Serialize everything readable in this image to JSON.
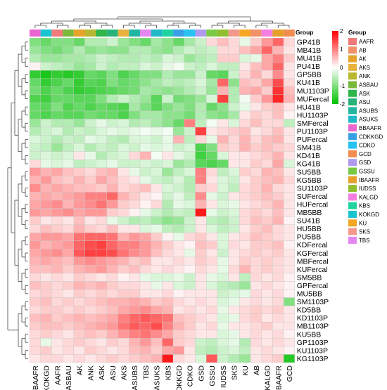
{
  "chart_data": {
    "type": "heatmap",
    "rows": [
      "GP41B",
      "MB41B",
      "MU41B",
      "PU41B",
      "GP5BB",
      "KU41B",
      "MU1103P",
      "MUFercal",
      "HU41B",
      "HU1103P",
      "SMFercal",
      "PU1103P",
      "PUFercal",
      "SM41B",
      "KD41B",
      "KG41B",
      "SU5BB",
      "KG5BB",
      "SU1103P",
      "SUFercal",
      "HUFercal",
      "MB5BB",
      "SU41B",
      "HU5BB",
      "PU5BB",
      "KDFercal",
      "KGFercal",
      "MBFercal",
      "KUFercal",
      "SM5BB",
      "GPFercal",
      "MU5BB",
      "SM1103P",
      "KD5BB",
      "KD1103P",
      "MB1103P",
      "KU5BB",
      "GP1103P",
      "KU1103P",
      "KG1103P"
    ],
    "columns": [
      "BBAAFR",
      "KOKGD",
      "AAFR",
      "ASBAU",
      "AK",
      "ANK",
      "ASK",
      "ASU",
      "AKS",
      "ASUBS",
      "TBS",
      "ASUKS",
      "KBS",
      "CDKKGD",
      "CDKO",
      "GSD",
      "GSSU",
      "IUDSS",
      "SKS",
      "KU",
      "AB",
      "KALGD",
      "IBAAFR",
      "GCD"
    ],
    "column_groups": [
      "BBAAFR",
      "KOKGD",
      "AAFR",
      "ASBAU",
      "AK",
      "ANK",
      "ASK",
      "ASU",
      "AKS",
      "ASUBS",
      "TBS",
      "ASUKS",
      "KBS",
      "CDKKGD",
      "CDKO",
      "GSD",
      "GSSU",
      "IUDSS",
      "SKS",
      "KU",
      "AB",
      "KALGD",
      "IBAAFR",
      "GCD"
    ],
    "colorbar": {
      "ticks": [
        2,
        1,
        0,
        -1,
        -2
      ],
      "colors": [
        "#ff0000",
        "#ffffff",
        "#00c000"
      ]
    },
    "group_legend": {
      "title": "Group",
      "items": [
        {
          "name": "AAFR",
          "color": "#f27a7a"
        },
        {
          "name": "AB",
          "color": "#f2906a"
        },
        {
          "name": "AK",
          "color": "#e6a52a"
        },
        {
          "name": "AKS",
          "color": "#e8b23c"
        },
        {
          "name": "ANK",
          "color": "#b7b82f"
        },
        {
          "name": "ASBAU",
          "color": "#7ab83a"
        },
        {
          "name": "ASK",
          "color": "#2fb54a"
        },
        {
          "name": "ASU",
          "color": "#27b37a"
        },
        {
          "name": "ASUBS",
          "color": "#22b5a0"
        },
        {
          "name": "ASUKS",
          "color": "#20b8c7"
        },
        {
          "name": "BBAAFR",
          "color": "#e865d2"
        },
        {
          "name": "CDKKGD",
          "color": "#3aa0e6"
        },
        {
          "name": "CDKO",
          "color": "#27c3f0"
        },
        {
          "name": "GCD",
          "color": "#f28c50"
        },
        {
          "name": "GSD",
          "color": "#b09aef"
        },
        {
          "name": "GSSU",
          "color": "#7ac943"
        },
        {
          "name": "IBAAFR",
          "color": "#e6a02a"
        },
        {
          "name": "IUDSS",
          "color": "#8fbf2f"
        },
        {
          "name": "KALGD",
          "color": "#f47fe0"
        },
        {
          "name": "KBS",
          "color": "#1fd3a0"
        },
        {
          "name": "KOKGD",
          "color": "#19c3cf"
        },
        {
          "name": "KU",
          "color": "#f5a623"
        },
        {
          "name": "SKS",
          "color": "#f2988a"
        },
        {
          "name": "TBS",
          "color": "#e487f0"
        }
      ]
    },
    "values": [
      [
        -1.0,
        -1.2,
        -1.0,
        -1.0,
        -1.2,
        -0.6,
        -0.6,
        -0.4,
        -0.8,
        -1.0,
        -1.2,
        -0.7,
        -0.9,
        -1.2,
        -0.7,
        -0.4,
        0.3,
        0.5,
        0.3,
        -0.2,
        0.4,
        0.8,
        1.2,
        0.3
      ],
      [
        -0.8,
        -1.0,
        -1.1,
        -0.9,
        -0.6,
        -0.9,
        -0.8,
        -0.9,
        -0.9,
        -0.6,
        -0.6,
        -0.8,
        -0.9,
        -0.6,
        -0.4,
        -0.5,
        -0.4,
        0.3,
        0.3,
        0.5,
        0.7,
        1.2,
        0.6,
        0.2
      ],
      [
        -0.6,
        -0.8,
        -0.8,
        -0.7,
        -0.7,
        -0.6,
        -0.4,
        -0.5,
        -0.6,
        -0.6,
        -0.5,
        -0.6,
        -0.3,
        -0.4,
        -0.8,
        -0.6,
        -0.5,
        0.4,
        0.4,
        -0.3,
        -0.2,
        0.7,
        1.0,
        0.4
      ],
      [
        0.1,
        -0.4,
        -0.5,
        -0.6,
        -0.8,
        -0.7,
        -0.4,
        -0.6,
        -0.5,
        -0.5,
        -0.3,
        -0.4,
        -0.2,
        -0.1,
        -0.4,
        -0.5,
        -0.3,
        -0.5,
        -0.5,
        0.2,
        0.5,
        0.7,
        1.2,
        0.2
      ],
      [
        -1.6,
        -1.8,
        -1.6,
        -1.7,
        -1.6,
        -1.2,
        -1.3,
        -1.0,
        -1.4,
        -1.2,
        -1.0,
        -1.0,
        -0.6,
        -0.8,
        -0.8,
        -0.4,
        -1.2,
        -1.3,
        -0.4,
        0.3,
        0.6,
        0.3,
        0.9,
        0.2
      ],
      [
        -1.2,
        -1.6,
        -1.4,
        -1.2,
        -1.6,
        -1.3,
        -1.4,
        -1.0,
        -1.2,
        -1.1,
        -0.9,
        -0.7,
        -0.5,
        -0.6,
        -0.5,
        -0.3,
        -0.7,
        1.2,
        -0.9,
        0.5,
        0.4,
        0.7,
        1.4,
        0.3
      ],
      [
        -1.1,
        -1.4,
        -1.2,
        -1.4,
        -1.6,
        -1.5,
        -1.4,
        -1.3,
        -1.2,
        -1.1,
        -0.7,
        -0.8,
        -0.9,
        -0.8,
        -0.6,
        -0.4,
        -0.8,
        0.6,
        -0.6,
        0.6,
        0.7,
        0.4,
        1.6,
        0.5
      ],
      [
        -1.4,
        -1.5,
        -1.2,
        -1.2,
        -1.3,
        -1.3,
        -1.0,
        -0.6,
        -0.4,
        -0.6,
        -0.8,
        -1.3,
        -0.4,
        -1.1,
        -1.0,
        -0.8,
        -0.3,
        1.5,
        -0.6,
        -0.1,
        0.4,
        0.8,
        1.7,
        0.6
      ],
      [
        -1.2,
        -1.3,
        -1.0,
        -1.4,
        -1.2,
        -1.4,
        -1.2,
        -1.3,
        -1.4,
        -0.7,
        -1.0,
        -1.3,
        -1.0,
        -0.8,
        -1.0,
        -0.6,
        -1.2,
        -0.9,
        -0.4,
        -0.2,
        0.2,
        0.4,
        0.5,
        0.2
      ],
      [
        -1.2,
        -1.4,
        -1.2,
        -1.3,
        -1.3,
        -1.1,
        -1.2,
        -1.2,
        -1.4,
        -1.0,
        -0.7,
        -0.7,
        -0.9,
        -0.9,
        -1.1,
        -0.6,
        -0.9,
        -1.0,
        -0.7,
        0.2,
        0.4,
        0.3,
        0.5,
        0.1
      ],
      [
        -0.8,
        -0.4,
        -0.6,
        -0.6,
        -0.8,
        -0.4,
        -0.2,
        -0.4,
        -0.3,
        -0.6,
        -0.5,
        -0.7,
        -0.9,
        -1.2,
        1.0,
        -0.5,
        -0.1,
        0.2,
        -0.3,
        0.3,
        0.5,
        0.3,
        0.3,
        -0.5
      ],
      [
        -0.6,
        -0.4,
        -0.3,
        -0.6,
        -0.4,
        -0.5,
        -0.3,
        -0.2,
        -0.3,
        -0.2,
        -0.1,
        -0.2,
        -0.1,
        -0.8,
        -0.4,
        1.5,
        0.2,
        0.3,
        0.4,
        0.5,
        0.2,
        0.3,
        0.5,
        0.2
      ],
      [
        -0.3,
        -0.4,
        -0.6,
        -0.4,
        -0.5,
        -0.2,
        -0.3,
        -0.5,
        -0.6,
        -0.3,
        -0.3,
        -0.4,
        -0.2,
        0.6,
        -0.5,
        0.3,
        -0.2,
        0.6,
        0.3,
        0.6,
        0.3,
        0.5,
        0.6,
        0.2
      ],
      [
        -0.4,
        -0.5,
        -0.8,
        -0.5,
        -0.3,
        -0.6,
        -0.4,
        -0.5,
        -0.3,
        -0.4,
        -0.2,
        -0.3,
        -0.2,
        -0.4,
        -0.3,
        -1.4,
        -1.0,
        0.4,
        0.3,
        0.6,
        0.4,
        0.5,
        0.4,
        0.3
      ],
      [
        -0.4,
        -0.3,
        -0.4,
        -0.3,
        0.2,
        -0.2,
        -0.6,
        -0.4,
        -0.3,
        0.3,
        0.6,
        -0.1,
        0.2,
        -0.2,
        -0.4,
        -1.5,
        -1.2,
        -0.3,
        0.2,
        0.2,
        0.3,
        0.4,
        0.6,
        0.2
      ],
      [
        0.3,
        -0.2,
        -0.3,
        -0.2,
        -0.5,
        -0.4,
        -0.3,
        -0.2,
        -0.4,
        -0.4,
        -0.3,
        -0.4,
        -0.3,
        -0.8,
        -0.6,
        -1.3,
        -1.4,
        -1.2,
        0.2,
        0.2,
        0.4,
        0.3,
        0.7,
        -0.3
      ],
      [
        0.8,
        0.6,
        0.7,
        0.5,
        0.4,
        0.3,
        0.5,
        0.6,
        0.2,
        -0.2,
        -0.4,
        -0.3,
        -0.8,
        -0.5,
        -0.3,
        1.0,
        0.3,
        -0.5,
        -0.3,
        0.4,
        0.3,
        0.6,
        0.5,
        0.2
      ],
      [
        0.6,
        0.8,
        0.5,
        0.4,
        0.6,
        0.4,
        0.7,
        0.5,
        0.3,
        0.2,
        -0.2,
        -0.4,
        -0.5,
        -0.3,
        -0.6,
        1.0,
        0.2,
        -0.3,
        -0.4,
        0.2,
        0.4,
        0.5,
        0.6,
        0.3
      ],
      [
        0.9,
        0.6,
        0.7,
        0.6,
        0.5,
        0.5,
        0.4,
        0.6,
        0.3,
        0.4,
        0.5,
        0.2,
        -0.3,
        -0.4,
        -0.6,
        0.4,
        0.3,
        -0.3,
        -0.5,
        0.3,
        0.4,
        0.6,
        0.3,
        0.2
      ],
      [
        0.6,
        0.7,
        0.6,
        0.7,
        0.8,
        1.0,
        1.0,
        1.2,
        0.6,
        0.4,
        0.2,
        0.1,
        -0.4,
        -0.2,
        -0.5,
        0.9,
        -0.2,
        -0.4,
        0.2,
        0.3,
        0.4,
        0.5,
        0.4,
        0.2
      ],
      [
        0.7,
        0.8,
        0.9,
        0.6,
        0.8,
        0.9,
        1.1,
        0.8,
        0.4,
        0.3,
        0.1,
        0.3,
        -0.6,
        -0.2,
        -0.3,
        0.6,
        0.2,
        -0.3,
        -0.2,
        0.2,
        0.3,
        0.4,
        0.6,
        0.2
      ],
      [
        0.8,
        0.7,
        0.8,
        0.9,
        0.7,
        0.8,
        0.8,
        0.4,
        0.3,
        0.1,
        -0.2,
        -0.4,
        -0.6,
        -0.4,
        -0.5,
        1.8,
        -0.2,
        -0.4,
        -0.3,
        0.3,
        0.4,
        0.3,
        0.5,
        0.2
      ],
      [
        0.4,
        0.2,
        0.3,
        0.2,
        0.5,
        0.2,
        0.3,
        -0.2,
        -0.4,
        -0.6,
        -0.5,
        -0.7,
        -0.9,
        -0.8,
        -0.4,
        0.2,
        -0.5,
        -0.6,
        -0.4,
        0.3,
        0.5,
        0.4,
        0.6,
        0.1
      ],
      [
        0.3,
        0.5,
        0.4,
        0.3,
        0.6,
        0.4,
        0.3,
        0.5,
        0.2,
        0.2,
        -0.3,
        -0.2,
        -0.5,
        -0.6,
        -0.4,
        0.2,
        -0.3,
        -0.5,
        -0.4,
        0.2,
        0.4,
        0.5,
        0.3,
        0.2
      ],
      [
        0.7,
        0.8,
        0.8,
        0.7,
        1.1,
        1.2,
        1.2,
        1.1,
        0.6,
        0.8,
        0.7,
        0.4,
        0.1,
        -0.2,
        0.3,
        0.4,
        0.2,
        -0.3,
        0.2,
        0.3,
        0.5,
        0.4,
        0.3,
        0.2
      ],
      [
        0.8,
        0.6,
        0.7,
        0.8,
        1.2,
        1.4,
        1.5,
        1.2,
        1.0,
        1.0,
        0.8,
        0.6,
        0.4,
        0.2,
        0.1,
        0.5,
        0.4,
        -0.3,
        0.3,
        0.2,
        0.4,
        0.4,
        0.5,
        0.1
      ],
      [
        0.7,
        0.8,
        0.9,
        0.7,
        1.3,
        1.5,
        1.5,
        1.4,
        1.1,
        0.9,
        0.8,
        0.5,
        0.3,
        0.2,
        -0.2,
        0.4,
        0.2,
        -0.4,
        0.2,
        0.3,
        0.4,
        0.3,
        0.4,
        0.2
      ],
      [
        0.6,
        0.7,
        0.6,
        0.5,
        0.8,
        0.9,
        0.8,
        0.7,
        0.6,
        0.4,
        0.5,
        0.2,
        0.2,
        0.3,
        0.2,
        0.4,
        0.3,
        -0.2,
        0.2,
        0.4,
        0.3,
        0.4,
        0.3,
        0.2
      ],
      [
        0.5,
        0.5,
        0.6,
        0.4,
        0.6,
        0.7,
        0.8,
        0.6,
        0.4,
        0.5,
        0.3,
        0.2,
        0.3,
        0.2,
        0.1,
        0.3,
        0.2,
        -0.2,
        0.3,
        0.6,
        0.3,
        0.4,
        0.3,
        0.2
      ],
      [
        0.3,
        0.2,
        0.3,
        0.2,
        0.4,
        0.3,
        0.2,
        0.3,
        0.1,
        0.2,
        -0.2,
        -0.3,
        -0.3,
        -0.2,
        -0.4,
        0.2,
        -0.2,
        -0.3,
        0.2,
        -0.5,
        0.3,
        0.2,
        0.3,
        0.1
      ],
      [
        0.5,
        0.4,
        0.3,
        0.4,
        0.6,
        0.5,
        0.6,
        0.4,
        0.3,
        0.3,
        0.2,
        -0.2,
        0.2,
        -0.3,
        -0.4,
        0.2,
        -0.3,
        -0.5,
        -0.6,
        -0.8,
        0.2,
        0.3,
        0.2,
        0.1
      ],
      [
        0.3,
        0.4,
        0.3,
        0.2,
        0.4,
        0.3,
        0.4,
        0.3,
        0.4,
        0.4,
        0.2,
        0.2,
        0.3,
        0.1,
        0.2,
        0.2,
        0.2,
        -0.4,
        -0.3,
        -0.2,
        0.3,
        0.2,
        0.3,
        0.1
      ],
      [
        0.4,
        0.5,
        0.3,
        0.4,
        0.3,
        0.4,
        0.5,
        0.6,
        0.6,
        0.7,
        0.6,
        0.4,
        0.5,
        0.3,
        0.2,
        0.3,
        0.2,
        -0.3,
        -0.2,
        0.2,
        0.3,
        0.2,
        0.3,
        -1.0
      ],
      [
        0.3,
        0.4,
        0.4,
        0.3,
        0.4,
        0.3,
        0.4,
        0.5,
        0.7,
        0.8,
        0.9,
        0.7,
        0.6,
        0.2,
        0.3,
        0.2,
        0.3,
        -0.2,
        0.2,
        0.3,
        0.4,
        0.3,
        0.4,
        0.2
      ],
      [
        0.5,
        0.6,
        0.4,
        0.5,
        0.6,
        0.5,
        0.6,
        0.7,
        1.0,
        1.2,
        1.3,
        1.2,
        1.1,
        0.5,
        0.4,
        0.3,
        0.2,
        -0.3,
        -0.2,
        0.3,
        0.4,
        0.2,
        0.3,
        0.2
      ],
      [
        0.4,
        0.5,
        0.5,
        0.4,
        0.5,
        0.6,
        0.7,
        0.8,
        1.1,
        1.3,
        1.2,
        1.4,
        1.0,
        0.6,
        0.4,
        0.2,
        0.3,
        -0.2,
        0.2,
        0.2,
        0.3,
        0.4,
        0.2,
        0.2
      ],
      [
        0.3,
        0.4,
        0.3,
        0.2,
        0.4,
        0.5,
        0.4,
        0.6,
        0.8,
        1.0,
        1.1,
        0.9,
        0.7,
        0.4,
        0.3,
        0.2,
        0.2,
        -0.3,
        -0.2,
        0.2,
        0.3,
        0.2,
        0.3,
        0.1
      ],
      [
        0.3,
        -0.2,
        0.2,
        0.3,
        0.4,
        0.3,
        0.2,
        0.4,
        0.3,
        0.6,
        0.8,
        0.5,
        1.2,
        0.4,
        0.3,
        -0.4,
        -0.5,
        -0.3,
        -0.2,
        -0.6,
        0.3,
        0.2,
        0.3,
        0.2
      ],
      [
        0.3,
        0.4,
        0.2,
        0.3,
        0.2,
        0.4,
        0.3,
        0.2,
        0.3,
        0.5,
        0.6,
        0.4,
        0.7,
        0.8,
        0.2,
        -0.5,
        -0.6,
        -0.4,
        -0.3,
        -0.5,
        0.2,
        0.3,
        0.2,
        0.1
      ],
      [
        0.2,
        0.3,
        0.3,
        0.2,
        0.3,
        0.2,
        0.3,
        0.4,
        0.3,
        0.4,
        0.5,
        0.6,
        1.8,
        0.3,
        0.2,
        -0.3,
        1.3,
        -0.4,
        -0.6,
        -0.8,
        0.2,
        0.3,
        0.4,
        -1.7
      ]
    ]
  }
}
